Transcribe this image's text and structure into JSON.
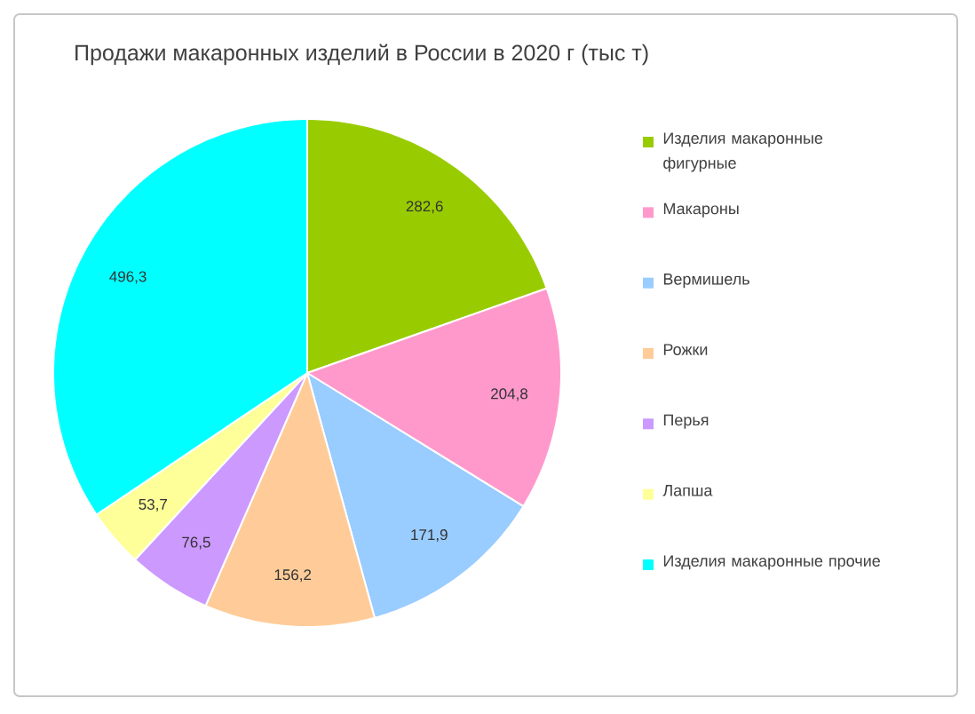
{
  "chart_data": {
    "type": "pie",
    "title": "Продажи макаронных изделий в России в 2020 г (тыс т)",
    "categories": [
      "Изделия макаронные фигурные",
      "Макароны",
      "Вермишель",
      "Рожки",
      "Перья",
      "Лапша",
      "Изделия макаронные прочие"
    ],
    "values": [
      282.6,
      204.8,
      171.9,
      156.2,
      76.5,
      53.7,
      496.3
    ],
    "colors": [
      "#99cc00",
      "#ff99cc",
      "#99ccff",
      "#ffcc99",
      "#cc99ff",
      "#ffff99",
      "#00ffff"
    ],
    "value_labels": [
      "282,6",
      "204,8",
      "171,9",
      "156,2",
      "76,5",
      "53,7",
      "496,3"
    ],
    "legend": "right"
  }
}
